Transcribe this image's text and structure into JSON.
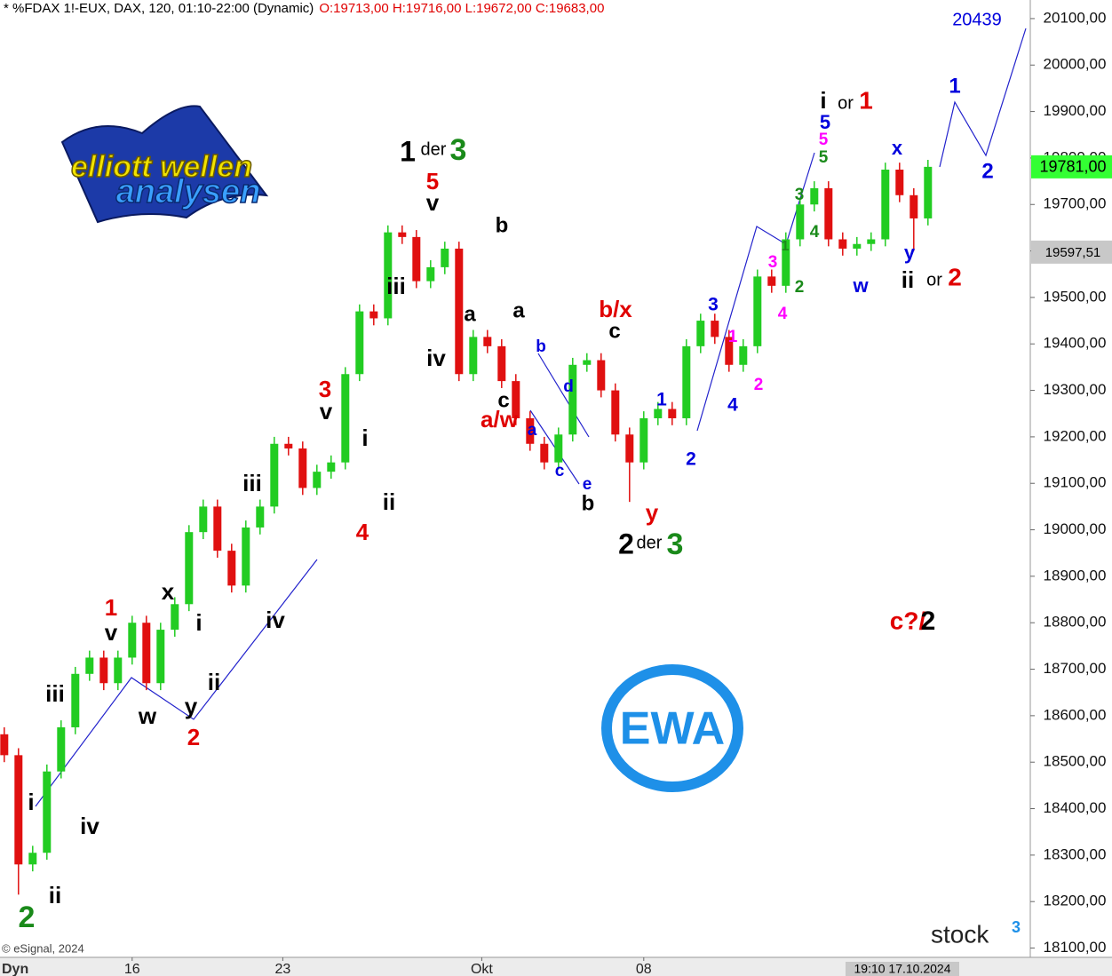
{
  "chart_data": {
    "type": "candlestick",
    "title": "* %FDAX 1!-EUX, DAX, 120, 01:10-22:00 (Dynamic)",
    "subtitle": "O:19713,00 H:19716,00 L:19672,00 C:19683,00",
    "open": [
      18560,
      18515,
      18280,
      18305,
      18480,
      18575,
      18690,
      18725,
      18670,
      18725,
      18800,
      18670,
      18785,
      18840,
      18995,
      19050,
      18955,
      18880,
      19005,
      19050,
      19185,
      19175,
      19090,
      19125,
      19145,
      19335,
      19470,
      19455,
      19640,
      19630,
      19535,
      19565,
      19605,
      19335,
      19415,
      19395,
      19320,
      19240,
      19185,
      19145,
      19205,
      19355,
      19365,
      19300,
      19205,
      19145,
      19240,
      19260,
      19240,
      19395,
      19450,
      19415,
      19355,
      19395,
      19545,
      19525,
      19625,
      19700,
      19735,
      19625,
      19605,
      19615,
      19625,
      19775,
      19720,
      19670
    ],
    "high": [
      18575,
      18530,
      18320,
      18495,
      18590,
      18705,
      18740,
      18740,
      18740,
      18815,
      18815,
      18800,
      18855,
      19010,
      19065,
      19065,
      18970,
      19020,
      19065,
      19200,
      19200,
      19190,
      19140,
      19160,
      19350,
      19485,
      19485,
      19655,
      19655,
      19645,
      19580,
      19620,
      19620,
      19430,
      19430,
      19410,
      19335,
      19255,
      19200,
      19220,
      19370,
      19380,
      19380,
      19315,
      19220,
      19255,
      19275,
      19275,
      19410,
      19465,
      19465,
      19430,
      19410,
      19560,
      19560,
      19640,
      19715,
      19750,
      19750,
      19640,
      19630,
      19640,
      19790,
      19790,
      19735,
      19796
    ],
    "low": [
      18500,
      18215,
      18265,
      18290,
      18465,
      18560,
      18675,
      18655,
      18655,
      18710,
      18655,
      18655,
      18770,
      18825,
      18980,
      18940,
      18865,
      18865,
      18990,
      19035,
      19160,
      19075,
      19075,
      19110,
      19130,
      19320,
      19440,
      19440,
      19615,
      19520,
      19520,
      19550,
      19320,
      19320,
      19380,
      19305,
      19225,
      19170,
      19130,
      19130,
      19190,
      19340,
      19285,
      19190,
      19060,
      19130,
      19225,
      19225,
      19225,
      19380,
      19400,
      19340,
      19340,
      19380,
      19510,
      19510,
      19610,
      19685,
      19610,
      19590,
      19590,
      19600,
      19610,
      19705,
      19600,
      19655
    ],
    "close": [
      18515,
      18280,
      18305,
      18480,
      18575,
      18690,
      18725,
      18670,
      18725,
      18800,
      18670,
      18785,
      18840,
      18995,
      19050,
      18955,
      18880,
      19005,
      19050,
      19185,
      19175,
      19090,
      19125,
      19145,
      19335,
      19470,
      19455,
      19640,
      19630,
      19535,
      19565,
      19605,
      19335,
      19415,
      19395,
      19320,
      19240,
      19185,
      19145,
      19205,
      19355,
      19365,
      19300,
      19205,
      19145,
      19240,
      19260,
      19240,
      19395,
      19450,
      19415,
      19355,
      19395,
      19545,
      19525,
      19625,
      19700,
      19735,
      19625,
      19605,
      19615,
      19625,
      19775,
      19720,
      19670,
      19781
    ],
    "up_color": "#22cc22",
    "down_color": "#e01010",
    "xlim": [
      -0.3,
      72.2
    ],
    "xticks": [
      {
        "value": 9,
        "label": "16"
      },
      {
        "value": 19.6,
        "label": "23"
      },
      {
        "value": 33.6,
        "label": "Okt"
      },
      {
        "value": 45,
        "label": "08"
      }
    ],
    "x_axis_start_label": "Dyn",
    "cursor_label": "19:10 17.10.2024",
    "ylim": [
      18080,
      20140
    ],
    "yticks": [
      {
        "value": 18100,
        "label": "18100,00"
      },
      {
        "value": 18200,
        "label": "18200,00"
      },
      {
        "value": 18300,
        "label": "18300,00"
      },
      {
        "value": 18400,
        "label": "18400,00"
      },
      {
        "value": 18500,
        "label": "18500,00"
      },
      {
        "value": 18600,
        "label": "18600,00"
      },
      {
        "value": 18700,
        "label": "18700,00"
      },
      {
        "value": 18800,
        "label": "18800,00"
      },
      {
        "value": 18900,
        "label": "18900,00"
      },
      {
        "value": 19000,
        "label": "19000,00"
      },
      {
        "value": 19100,
        "label": "19100,00"
      },
      {
        "value": 19200,
        "label": "19200,00"
      },
      {
        "value": 19300,
        "label": "19300,00"
      },
      {
        "value": 19400,
        "label": "19400,00"
      },
      {
        "value": 19500,
        "label": "19500,00"
      },
      {
        "value": 19600,
        "label": "19600,00"
      },
      {
        "value": 19700,
        "label": "19700,00"
      },
      {
        "value": 19800,
        "label": "19800,00"
      },
      {
        "value": 19900,
        "label": "19900,00"
      },
      {
        "value": 20000,
        "label": "20000,00"
      },
      {
        "value": 20100,
        "label": "20100,00"
      }
    ],
    "price_tags": [
      {
        "value": 19781,
        "label": "19781,00",
        "color": "#33ff33"
      },
      {
        "value": 19597.51,
        "label": "19597,51",
        "color": "#c8c8c8"
      }
    ],
    "annotations": [
      {
        "text": "2",
        "color": "#1a8a1a"
      },
      {
        "text": "i",
        "color": "#000"
      },
      {
        "text": "ii",
        "color": "#000"
      },
      {
        "text": "iv",
        "color": "#000"
      },
      {
        "text": "iii",
        "color": "#000"
      },
      {
        "text": "v",
        "color": "#000"
      },
      {
        "text": "1",
        "color": "#e00000"
      },
      {
        "text": "w",
        "color": "#000"
      },
      {
        "text": "x",
        "color": "#000"
      },
      {
        "text": "y",
        "color": "#000"
      },
      {
        "text": "2",
        "color": "#e00000"
      },
      {
        "text": "i",
        "color": "#000"
      },
      {
        "text": "ii",
        "color": "#000"
      },
      {
        "text": "iii",
        "color": "#000"
      },
      {
        "text": "iv",
        "color": "#000"
      },
      {
        "text": "v",
        "color": "#000"
      },
      {
        "text": "3",
        "color": "#e00000"
      },
      {
        "text": "i",
        "color": "#000"
      },
      {
        "text": "ii",
        "color": "#000"
      },
      {
        "text": "4",
        "color": "#e00000"
      },
      {
        "text": "iii",
        "color": "#000"
      },
      {
        "text": "iv",
        "color": "#000"
      },
      {
        "text": "v",
        "color": "#000"
      },
      {
        "text": "5",
        "color": "#e00000"
      },
      {
        "text": "1",
        "color": "#000"
      },
      {
        "text": "der",
        "color": "#000"
      },
      {
        "text": "3",
        "color": "#1a8a1a"
      },
      {
        "text": "a",
        "color": "#000"
      },
      {
        "text": "b",
        "color": "#000"
      },
      {
        "text": "a",
        "color": "#000"
      },
      {
        "text": "c",
        "color": "#000"
      },
      {
        "text": "a/w",
        "color": "#e00000"
      },
      {
        "text": "b",
        "color": "#0000dd"
      },
      {
        "text": "d",
        "color": "#0000dd"
      },
      {
        "text": "a",
        "color": "#0000dd"
      },
      {
        "text": "c",
        "color": "#0000dd"
      },
      {
        "text": "e",
        "color": "#0000dd"
      },
      {
        "text": "b",
        "color": "#000"
      },
      {
        "text": "b/x",
        "color": "#e00000"
      },
      {
        "text": "c",
        "color": "#000"
      },
      {
        "text": "y",
        "color": "#e00000"
      },
      {
        "text": "2",
        "color": "#000"
      },
      {
        "text": "der",
        "color": "#000"
      },
      {
        "text": "3",
        "color": "#1a8a1a"
      },
      {
        "text": "1",
        "color": "#0000dd"
      },
      {
        "text": "2",
        "color": "#0000dd"
      },
      {
        "text": "3",
        "color": "#0000dd"
      },
      {
        "text": "4",
        "color": "#0000dd"
      },
      {
        "text": "1",
        "color": "#ff00ff"
      },
      {
        "text": "2",
        "color": "#ff00ff"
      },
      {
        "text": "3",
        "color": "#ff00ff"
      },
      {
        "text": "4",
        "color": "#ff00ff"
      },
      {
        "text": "5",
        "color": "#ff00ff"
      },
      {
        "text": "1",
        "color": "#1a8a1a"
      },
      {
        "text": "2",
        "color": "#1a8a1a"
      },
      {
        "text": "3",
        "color": "#1a8a1a"
      },
      {
        "text": "4",
        "color": "#1a8a1a"
      },
      {
        "text": "5",
        "color": "#1a8a1a"
      },
      {
        "text": "5",
        "color": "#0000dd"
      },
      {
        "text": "i",
        "color": "#000"
      },
      {
        "text": "or",
        "color": "#000"
      },
      {
        "text": "1",
        "color": "#e00000"
      },
      {
        "text": "x",
        "color": "#0000dd"
      },
      {
        "text": "y",
        "color": "#0000dd"
      },
      {
        "text": "w",
        "color": "#0000dd"
      },
      {
        "text": "ii",
        "color": "#000"
      },
      {
        "text": "or",
        "color": "#000"
      },
      {
        "text": "2",
        "color": "#e00000"
      },
      {
        "text": "c?/",
        "color": "#e00000"
      },
      {
        "text": "2",
        "color": "#000"
      },
      {
        "text": "1",
        "color": "#0000dd"
      },
      {
        "text": "2",
        "color": "#0000dd"
      },
      {
        "text": "20439",
        "color": "#0000dd"
      }
    ],
    "copyright": "© eSignal, 2024",
    "logo": {
      "line1": "elliott wellen",
      "line2": "analysen"
    },
    "badge": "EWA",
    "brand": {
      "name": "stock",
      "superscript": "3"
    }
  }
}
